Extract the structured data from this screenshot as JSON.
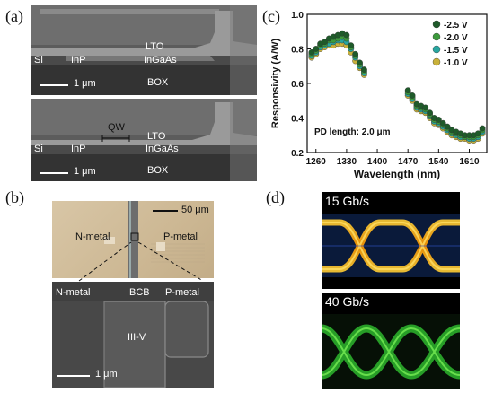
{
  "panels": {
    "a": {
      "label": "(a)",
      "top": {
        "si": "Si",
        "inp": "InP",
        "lto": "LTO",
        "ingaas": "InGaAs",
        "box": "BOX",
        "scale": "1 μm"
      },
      "bottom": {
        "qw": "QW",
        "si": "Si",
        "inp": "InP",
        "lto": "LTO",
        "ingaas": "InGaAs",
        "box": "BOX",
        "scale": "1 μm"
      }
    },
    "b": {
      "label": "(b)",
      "scale_top": "50 μm",
      "n_metal": "N-metal",
      "p_metal": "P-metal",
      "row_n": "N-metal",
      "row_bcb": "BCB",
      "row_p": "P-metal",
      "iiiv": "III-V",
      "scale_bottom": "1 μm"
    },
    "c": {
      "label": "(c)",
      "annotation": "PD length: 2.0 μm"
    },
    "d": {
      "label": "(d)",
      "rate_top": "15 Gb/s",
      "rate_bottom": "40 Gb/s"
    }
  },
  "chart_data": {
    "type": "scatter",
    "xlabel": "Wavelength (nm)",
    "ylabel": "Responsivity (A/W)",
    "xlim": [
      1240,
      1650
    ],
    "ylim": [
      0.2,
      1.0
    ],
    "xticks": [
      1260,
      1330,
      1400,
      1470,
      1540,
      1610
    ],
    "yticks": [
      0.2,
      0.4,
      0.6,
      0.8,
      1.0
    ],
    "legend_position": "top-right",
    "x": [
      1250,
      1260,
      1270,
      1280,
      1290,
      1300,
      1310,
      1320,
      1330,
      1340,
      1350,
      1360,
      1370,
      1470,
      1480,
      1490,
      1500,
      1510,
      1520,
      1530,
      1540,
      1550,
      1560,
      1570,
      1580,
      1590,
      1600,
      1610,
      1620,
      1630,
      1640
    ],
    "series": [
      {
        "name": "-2.5 V",
        "color": "#1f5a2a",
        "values": [
          0.78,
          0.8,
          0.83,
          0.84,
          0.86,
          0.87,
          0.88,
          0.89,
          0.88,
          0.82,
          0.77,
          0.72,
          0.68,
          0.56,
          0.53,
          0.48,
          0.47,
          0.46,
          0.43,
          0.4,
          0.39,
          0.37,
          0.35,
          0.33,
          0.32,
          0.31,
          0.3,
          0.3,
          0.3,
          0.31,
          0.34
        ]
      },
      {
        "name": "-2.0 V",
        "color": "#3c9a3c",
        "values": [
          0.77,
          0.79,
          0.82,
          0.83,
          0.85,
          0.85,
          0.86,
          0.87,
          0.86,
          0.81,
          0.76,
          0.71,
          0.67,
          0.55,
          0.52,
          0.47,
          0.46,
          0.45,
          0.42,
          0.39,
          0.38,
          0.36,
          0.34,
          0.32,
          0.31,
          0.3,
          0.29,
          0.29,
          0.29,
          0.3,
          0.33
        ]
      },
      {
        "name": "-1.5 V",
        "color": "#28a6a0",
        "values": [
          0.76,
          0.78,
          0.81,
          0.82,
          0.83,
          0.84,
          0.85,
          0.85,
          0.84,
          0.8,
          0.75,
          0.7,
          0.66,
          0.54,
          0.51,
          0.46,
          0.45,
          0.44,
          0.41,
          0.38,
          0.37,
          0.35,
          0.33,
          0.31,
          0.3,
          0.29,
          0.29,
          0.28,
          0.28,
          0.29,
          0.32
        ]
      },
      {
        "name": "-1.0 V",
        "color": "#c9b13a",
        "values": [
          0.75,
          0.77,
          0.8,
          0.81,
          0.82,
          0.82,
          0.83,
          0.83,
          0.82,
          0.78,
          0.73,
          0.69,
          0.65,
          0.53,
          0.5,
          0.45,
          0.44,
          0.43,
          0.4,
          0.37,
          0.36,
          0.34,
          0.32,
          0.3,
          0.29,
          0.28,
          0.28,
          0.27,
          0.27,
          0.28,
          0.31
        ]
      }
    ]
  }
}
